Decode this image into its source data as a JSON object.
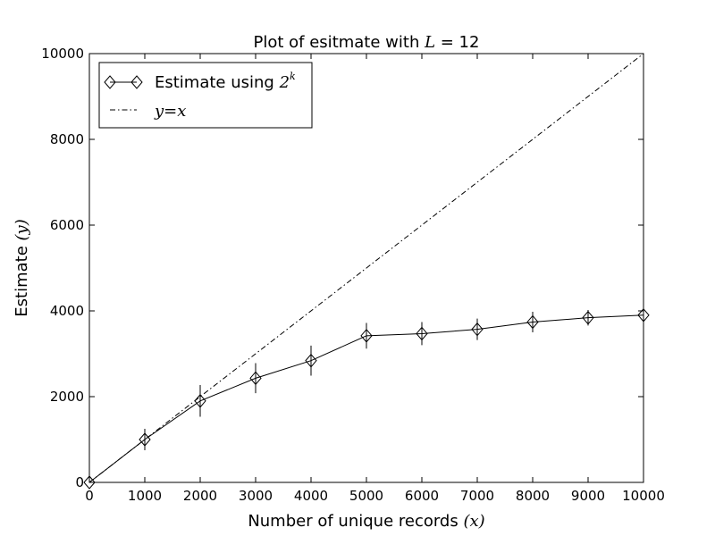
{
  "chart_data": {
    "type": "line",
    "title": {
      "prefix": "Plot of esitmate with ",
      "math": "L",
      "suffix": " = 12"
    },
    "xlabel": {
      "text": "Number of unique records ",
      "math": "(x)"
    },
    "ylabel": {
      "text": "Estimate ",
      "math": "(y)"
    },
    "xlim": [
      0,
      10000
    ],
    "ylim": [
      0,
      10000
    ],
    "xticks": [
      0,
      1000,
      2000,
      3000,
      4000,
      5000,
      6000,
      7000,
      8000,
      9000,
      10000
    ],
    "yticks": [
      0,
      2000,
      4000,
      6000,
      8000,
      10000
    ],
    "grid": false,
    "legend_position": "top-left",
    "series": [
      {
        "name": "Estimate using 2^k",
        "legend_text": "Estimate using ",
        "legend_math": "2",
        "legend_math_sup": "k",
        "style": "solid",
        "marker": "diamond",
        "color": "#000000",
        "x": [
          0,
          1000,
          2000,
          3000,
          4000,
          5000,
          6000,
          7000,
          8000,
          9000,
          10000
        ],
        "y": [
          0,
          1000,
          1900,
          2430,
          2840,
          3420,
          3470,
          3570,
          3740,
          3840,
          3900
        ],
        "err": [
          0,
          250,
          370,
          350,
          350,
          300,
          270,
          250,
          240,
          180,
          150
        ]
      },
      {
        "name": "y=x",
        "legend_math": "y=x",
        "style": "dashdot",
        "marker": "none",
        "color": "#000000",
        "x": [
          0,
          10000
        ],
        "y": [
          0,
          10000
        ]
      }
    ]
  }
}
